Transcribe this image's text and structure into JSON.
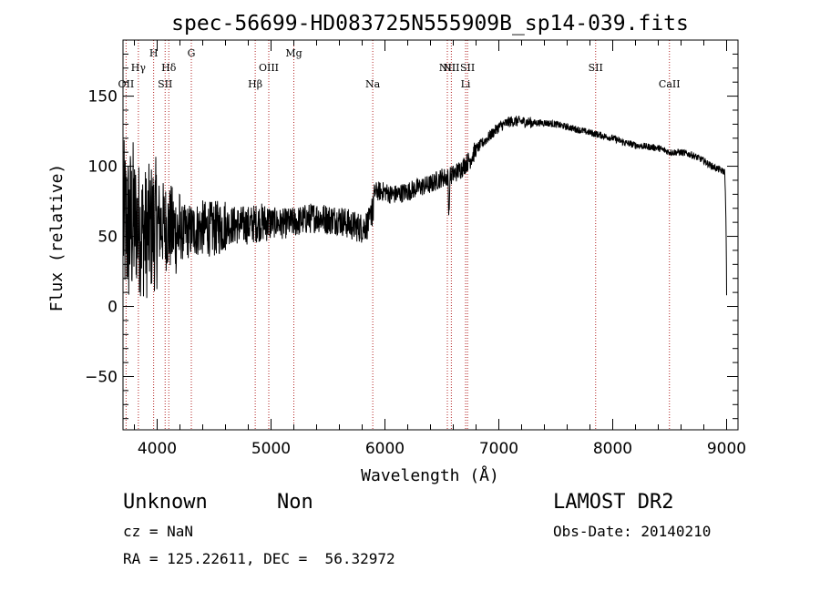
{
  "chart_data": {
    "type": "line",
    "title": "spec-56699-HD083725N555909B_sp14-039.fits",
    "xlabel": "Wavelength (Å)",
    "ylabel": "Flux (relative)",
    "xlim": [
      3700,
      9100
    ],
    "ylim": [
      -88,
      190
    ],
    "x_ticks": [
      4000,
      5000,
      6000,
      7000,
      8000,
      9000
    ],
    "y_ticks": [
      -50,
      0,
      50,
      100,
      150
    ],
    "line_color": "#000000",
    "marker_color": "#b22222",
    "lines": [
      {
        "label": "OII",
        "wavelength": 3727,
        "row": 3
      },
      {
        "label": "Hγ",
        "wavelength": 3835,
        "row": 2
      },
      {
        "label": "H",
        "wavelength": 3969,
        "row": 0
      },
      {
        "label": "Hδ",
        "wavelength": 4102,
        "row": 2
      },
      {
        "label": "SII",
        "wavelength": 4070,
        "row": 3
      },
      {
        "label": "G",
        "wavelength": 4300,
        "row": 0
      },
      {
        "label": "Hβ",
        "wavelength": 4861,
        "row": 3
      },
      {
        "label": "OIII",
        "wavelength": 4980,
        "row": 2
      },
      {
        "label": "Mg",
        "wavelength": 5200,
        "row": 0
      },
      {
        "label": "Na",
        "wavelength": 5893,
        "row": 3
      },
      {
        "label": "NII",
        "wavelength": 6583,
        "row": 2
      },
      {
        "label": "NII",
        "wavelength": 6548,
        "row": 1
      },
      {
        "label": "SII",
        "wavelength": 6725,
        "row": 1
      },
      {
        "label": "Li",
        "wavelength": 6708,
        "row": 3
      },
      {
        "label": "SII",
        "wavelength": 7850,
        "row": 2
      },
      {
        "label": "CaII",
        "wavelength": 8498,
        "row": 3
      }
    ],
    "anchors": [
      [
        3700,
        60
      ],
      [
        3750,
        55
      ],
      [
        3800,
        62
      ],
      [
        3850,
        55
      ],
      [
        3900,
        52
      ],
      [
        4000,
        60
      ],
      [
        4100,
        56
      ],
      [
        4200,
        52
      ],
      [
        4300,
        54
      ],
      [
        4400,
        56
      ],
      [
        4500,
        55
      ],
      [
        4600,
        58
      ],
      [
        4700,
        58
      ],
      [
        4800,
        58
      ],
      [
        4900,
        60
      ],
      [
        5000,
        60
      ],
      [
        5100,
        59
      ],
      [
        5200,
        60
      ],
      [
        5300,
        62
      ],
      [
        5400,
        64
      ],
      [
        5500,
        62
      ],
      [
        5600,
        62
      ],
      [
        5700,
        58
      ],
      [
        5800,
        56
      ],
      [
        5870,
        60
      ],
      [
        5890,
        78
      ],
      [
        5920,
        82
      ],
      [
        6000,
        82
      ],
      [
        6050,
        80
      ],
      [
        6100,
        80
      ],
      [
        6200,
        82
      ],
      [
        6300,
        85
      ],
      [
        6400,
        87
      ],
      [
        6500,
        92
      ],
      [
        6560,
        92
      ],
      [
        6650,
        97
      ],
      [
        6700,
        101
      ],
      [
        6750,
        105
      ],
      [
        6800,
        112
      ],
      [
        6900,
        120
      ],
      [
        7000,
        128
      ],
      [
        7100,
        132
      ],
      [
        7200,
        132
      ],
      [
        7300,
        131
      ],
      [
        7400,
        131
      ],
      [
        7500,
        130
      ],
      [
        7600,
        128
      ],
      [
        7700,
        126
      ],
      [
        7800,
        124
      ],
      [
        7900,
        122
      ],
      [
        8000,
        120
      ],
      [
        8100,
        117
      ],
      [
        8200,
        115
      ],
      [
        8300,
        114
      ],
      [
        8400,
        113
      ],
      [
        8500,
        110
      ],
      [
        8600,
        110
      ],
      [
        8700,
        108
      ],
      [
        8800,
        104
      ],
      [
        8850,
        101
      ],
      [
        8900,
        99
      ],
      [
        8950,
        97
      ],
      [
        8985,
        96
      ],
      [
        8995,
        60
      ],
      [
        9000,
        20
      ]
    ]
  },
  "info": {
    "class": "Unknown",
    "subclass": "Non",
    "cz": "cz = NaN",
    "radec": "RA = 125.22611, DEC =  56.32972",
    "survey": "LAMOST DR2",
    "obsdate": "Obs-Date: 20140210"
  }
}
